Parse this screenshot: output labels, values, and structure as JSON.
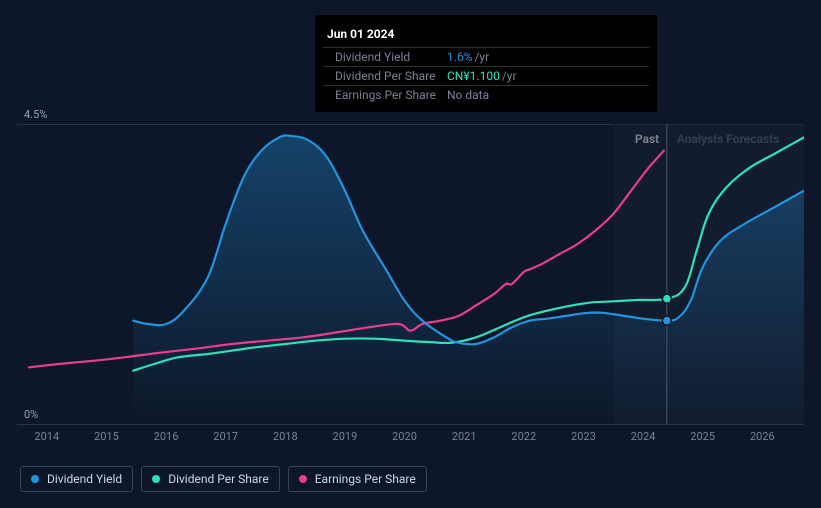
{
  "chart": {
    "background_color": "#0d1729",
    "ylim": [
      0,
      4.5
    ],
    "y_top_label": "4.5%",
    "y_bottom_label": "0%",
    "x_ticks": [
      "2014",
      "2015",
      "2016",
      "2017",
      "2018",
      "2019",
      "2020",
      "2021",
      "2022",
      "2023",
      "2024",
      "2025",
      "2026"
    ],
    "x_min": 2013.5,
    "x_max": 2026.7,
    "past_label": "Past",
    "forecast_label": "Analysts Forecasts",
    "now_x": 2024.4,
    "forecast_start_x": 2023.5,
    "cursor_x": 2024.4,
    "line_top_color": "#2c3547",
    "grid_color": "#2c3547",
    "tick_color": "#7a8296",
    "text_muted": "#7a8296",
    "cursor_line_color": "#3a4358",
    "forecast_shade_color": "rgba(23,33,52,0.55)",
    "series": {
      "dividend_yield": {
        "label": "Dividend Yield",
        "color": "#2394df",
        "area_gradient_top": "rgba(35,148,223,0.35)",
        "area_gradient_bottom": "rgba(35,148,223,0.0)",
        "points": [
          [
            2015.45,
            1.55
          ],
          [
            2015.7,
            1.5
          ],
          [
            2016.0,
            1.5
          ],
          [
            2016.3,
            1.7
          ],
          [
            2016.7,
            2.2
          ],
          [
            2017.0,
            3.0
          ],
          [
            2017.3,
            3.7
          ],
          [
            2017.6,
            4.1
          ],
          [
            2017.9,
            4.3
          ],
          [
            2018.1,
            4.32
          ],
          [
            2018.4,
            4.25
          ],
          [
            2018.7,
            4.0
          ],
          [
            2019.0,
            3.5
          ],
          [
            2019.3,
            2.9
          ],
          [
            2019.7,
            2.3
          ],
          [
            2020.0,
            1.85
          ],
          [
            2020.3,
            1.55
          ],
          [
            2020.7,
            1.3
          ],
          [
            2020.9,
            1.22
          ],
          [
            2021.2,
            1.2
          ],
          [
            2021.5,
            1.3
          ],
          [
            2021.8,
            1.45
          ],
          [
            2022.1,
            1.55
          ],
          [
            2022.4,
            1.58
          ],
          [
            2022.7,
            1.62
          ],
          [
            2023.0,
            1.66
          ],
          [
            2023.3,
            1.67
          ],
          [
            2023.7,
            1.62
          ],
          [
            2024.0,
            1.58
          ],
          [
            2024.4,
            1.55
          ],
          [
            2024.6,
            1.6
          ],
          [
            2024.8,
            1.85
          ],
          [
            2025.0,
            2.35
          ],
          [
            2025.3,
            2.75
          ],
          [
            2025.7,
            3.0
          ],
          [
            2026.1,
            3.2
          ],
          [
            2026.5,
            3.4
          ],
          [
            2026.7,
            3.5
          ]
        ],
        "marker_at": [
          2024.4,
          1.55
        ]
      },
      "dividend_per_share": {
        "label": "Dividend Per Share",
        "color": "#2de2b8",
        "points": [
          [
            2015.45,
            0.8
          ],
          [
            2015.8,
            0.9
          ],
          [
            2016.2,
            1.0
          ],
          [
            2016.7,
            1.05
          ],
          [
            2017.1,
            1.1
          ],
          [
            2017.5,
            1.15
          ],
          [
            2018.0,
            1.2
          ],
          [
            2018.5,
            1.25
          ],
          [
            2019.0,
            1.28
          ],
          [
            2019.5,
            1.28
          ],
          [
            2020.0,
            1.25
          ],
          [
            2020.4,
            1.23
          ],
          [
            2020.8,
            1.22
          ],
          [
            2021.2,
            1.3
          ],
          [
            2021.6,
            1.45
          ],
          [
            2022.0,
            1.6
          ],
          [
            2022.3,
            1.68
          ],
          [
            2022.7,
            1.76
          ],
          [
            2023.1,
            1.82
          ],
          [
            2023.5,
            1.84
          ],
          [
            2023.9,
            1.86
          ],
          [
            2024.4,
            1.88
          ],
          [
            2024.7,
            2.05
          ],
          [
            2024.9,
            2.6
          ],
          [
            2025.1,
            3.15
          ],
          [
            2025.4,
            3.55
          ],
          [
            2025.8,
            3.85
          ],
          [
            2026.2,
            4.05
          ],
          [
            2026.7,
            4.3
          ]
        ],
        "marker_at": [
          2024.4,
          1.88
        ]
      },
      "earnings_per_share": {
        "label": "Earnings Per Share",
        "color": "#e83e8c",
        "points": [
          [
            2013.7,
            0.85
          ],
          [
            2014.2,
            0.9
          ],
          [
            2014.8,
            0.95
          ],
          [
            2015.3,
            1.0
          ],
          [
            2015.9,
            1.07
          ],
          [
            2016.5,
            1.13
          ],
          [
            2017.1,
            1.2
          ],
          [
            2017.7,
            1.25
          ],
          [
            2018.3,
            1.3
          ],
          [
            2018.9,
            1.38
          ],
          [
            2019.4,
            1.45
          ],
          [
            2019.9,
            1.5
          ],
          [
            2020.1,
            1.4
          ],
          [
            2020.3,
            1.5
          ],
          [
            2020.6,
            1.55
          ],
          [
            2020.9,
            1.62
          ],
          [
            2021.2,
            1.78
          ],
          [
            2021.5,
            1.95
          ],
          [
            2021.7,
            2.1
          ],
          [
            2021.8,
            2.1
          ],
          [
            2022.0,
            2.28
          ],
          [
            2022.1,
            2.32
          ],
          [
            2022.3,
            2.4
          ],
          [
            2022.6,
            2.55
          ],
          [
            2022.9,
            2.7
          ],
          [
            2023.2,
            2.9
          ],
          [
            2023.5,
            3.15
          ],
          [
            2023.8,
            3.5
          ],
          [
            2024.1,
            3.85
          ],
          [
            2024.35,
            4.1
          ]
        ]
      }
    }
  },
  "tooltip": {
    "title": "Jun 01 2024",
    "rows": [
      {
        "label": "Dividend Yield",
        "value": "1.6%",
        "suffix": "/yr",
        "value_color": "#2394df"
      },
      {
        "label": "Dividend Per Share",
        "value": "CN¥1.100",
        "suffix": "/yr",
        "value_color": "#2de2b8"
      },
      {
        "label": "Earnings Per Share",
        "value": "No data",
        "suffix": "",
        "value_color": "#7a8296"
      }
    ]
  },
  "legend": {
    "items": [
      {
        "label": "Dividend Yield",
        "color": "#2394df"
      },
      {
        "label": "Dividend Per Share",
        "color": "#2de2b8"
      },
      {
        "label": "Earnings Per Share",
        "color": "#e83e8c"
      }
    ]
  }
}
